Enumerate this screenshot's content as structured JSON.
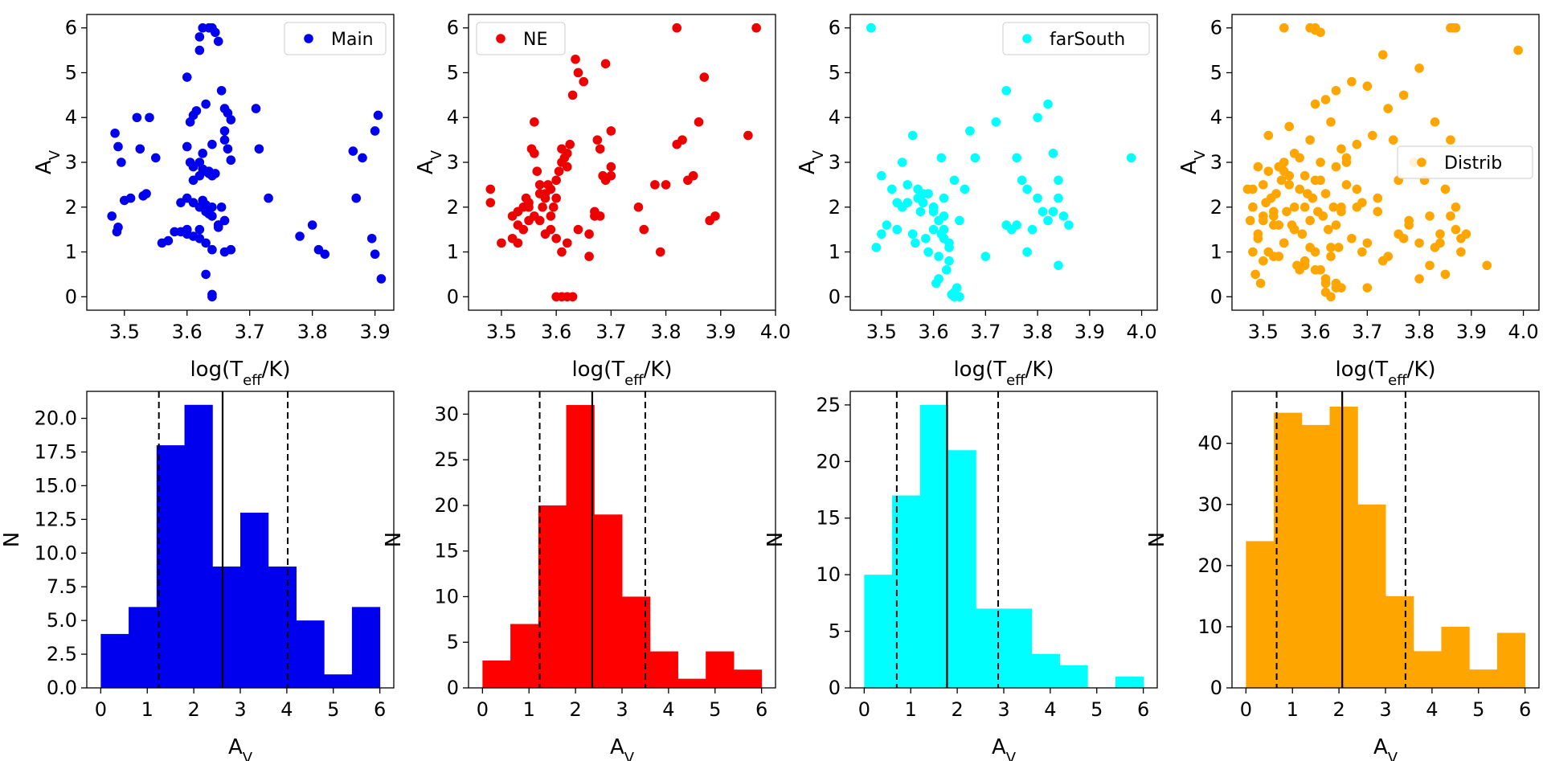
{
  "figure": {
    "scatter_xlabel_main": "log(T",
    "scatter_xlabel_sub": "eff",
    "scatter_xlabel_tail": "/K)",
    "scatter_ylabel_main": "A",
    "scatter_ylabel_sub": "V",
    "hist_xlabel_main": "A",
    "hist_xlabel_sub": "V",
    "hist_ylabel": "N"
  },
  "chart_data": [
    {
      "type": "scatter",
      "panel": "scatter-main",
      "color": "#0000ee",
      "legend": "Main",
      "legend_loc": "upper right",
      "xlim": [
        3.44,
        3.93
      ],
      "ylim": [
        -0.3,
        6.3
      ],
      "xticks": [
        "3.5",
        "3.6",
        "3.7",
        "3.8",
        "3.9"
      ],
      "xtick_values": [
        3.5,
        3.6,
        3.7,
        3.8,
        3.9
      ],
      "yticks": [
        "0",
        "1",
        "2",
        "3",
        "4",
        "5",
        "6"
      ],
      "ytick_values": [
        0,
        1,
        2,
        3,
        4,
        5,
        6
      ],
      "x": [
        3.485,
        3.49,
        3.495,
        3.49,
        3.488,
        3.48,
        3.5,
        3.51,
        3.52,
        3.525,
        3.53,
        3.535,
        3.54,
        3.55,
        3.56,
        3.57,
        3.58,
        3.59,
        3.6,
        3.605,
        3.61,
        3.615,
        3.62,
        3.62,
        3.625,
        3.63,
        3.635,
        3.64,
        3.645,
        3.65,
        3.655,
        3.66,
        3.665,
        3.67,
        3.6,
        3.605,
        3.61,
        3.62,
        3.625,
        3.63,
        3.635,
        3.64,
        3.645,
        3.6,
        3.62,
        3.63,
        3.64,
        3.65,
        3.66,
        3.66,
        3.67,
        3.59,
        3.6,
        3.61,
        3.62,
        3.625,
        3.63,
        3.635,
        3.64,
        3.65,
        3.6,
        3.61,
        3.62,
        3.63,
        3.64,
        3.65,
        3.655,
        3.66,
        3.665,
        3.67,
        3.63,
        3.64,
        3.64,
        3.635,
        3.6,
        3.61,
        3.62,
        3.625,
        3.64,
        3.66,
        3.71,
        3.715,
        3.73,
        3.78,
        3.8,
        3.81,
        3.82,
        3.865,
        3.87,
        3.88,
        3.895,
        3.9,
        3.905,
        3.91,
        3.9
      ],
      "y": [
        3.65,
        3.35,
        3.0,
        1.55,
        1.45,
        1.8,
        2.15,
        2.2,
        4.0,
        3.3,
        2.25,
        2.3,
        4.0,
        3.1,
        1.2,
        1.25,
        1.45,
        2.1,
        4.9,
        3.9,
        4.05,
        4.15,
        5.5,
        5.8,
        6.0,
        4.3,
        6.0,
        6.0,
        5.9,
        5.7,
        4.6,
        4.2,
        4.1,
        3.95,
        3.35,
        3.0,
        2.6,
        2.7,
        2.85,
        2.8,
        2.75,
        2.7,
        2.75,
        1.5,
        1.5,
        1.9,
        2.0,
        1.6,
        1.7,
        1.0,
        1.05,
        1.45,
        1.5,
        2.1,
        2.0,
        2.15,
        2.05,
        1.85,
        1.8,
        1.55,
        1.4,
        1.35,
        1.3,
        1.2,
        1.05,
        1.6,
        2.0,
        3.5,
        3.3,
        3.05,
        0.5,
        0.05,
        0.0,
        2.8,
        2.2,
        2.9,
        3.0,
        3.2,
        3.4,
        3.7,
        4.2,
        3.3,
        2.2,
        1.35,
        1.6,
        1.05,
        0.95,
        3.25,
        2.2,
        3.1,
        1.3,
        3.7,
        4.05,
        0.4,
        0.95
      ]
    },
    {
      "type": "scatter",
      "panel": "scatter-ne",
      "color": "#ee0000",
      "legend": "NE",
      "legend_loc": "upper left",
      "xlim": [
        3.44,
        4.0
      ],
      "ylim": [
        -0.3,
        6.3
      ],
      "xticks": [
        "3.5",
        "3.6",
        "3.7",
        "3.8",
        "3.9",
        "4.0"
      ],
      "xtick_values": [
        3.5,
        3.6,
        3.7,
        3.8,
        3.9,
        4.0
      ],
      "yticks": [
        "0",
        "1",
        "2",
        "3",
        "4",
        "5",
        "6"
      ],
      "ytick_values": [
        0,
        1,
        2,
        3,
        4,
        5,
        6
      ],
      "x": [
        3.48,
        3.48,
        3.5,
        3.52,
        3.53,
        3.53,
        3.54,
        3.545,
        3.55,
        3.55,
        3.555,
        3.56,
        3.56,
        3.565,
        3.57,
        3.57,
        3.575,
        3.58,
        3.58,
        3.585,
        3.59,
        3.59,
        3.595,
        3.6,
        3.6,
        3.605,
        3.61,
        3.61,
        3.615,
        3.62,
        3.62,
        3.625,
        3.63,
        3.635,
        3.64,
        3.65,
        3.66,
        3.67,
        3.675,
        3.68,
        3.685,
        3.69,
        3.7,
        3.7,
        3.7,
        3.69,
        3.68,
        3.67,
        3.66,
        3.64,
        3.62,
        3.61,
        3.6,
        3.59,
        3.58,
        3.57,
        3.56,
        3.55,
        3.54,
        3.53,
        3.52,
        3.75,
        3.76,
        3.78,
        3.79,
        3.8,
        3.82,
        3.83,
        3.84,
        3.85,
        3.86,
        3.87,
        3.88,
        3.89,
        3.95,
        3.965,
        3.82,
        3.6,
        3.61,
        3.62,
        3.63
      ],
      "y": [
        2.4,
        2.1,
        1.2,
        1.8,
        1.9,
        1.6,
        2.0,
        2.2,
        2.1,
        1.7,
        3.3,
        3.9,
        3.2,
        2.8,
        2.5,
        2.3,
        2.0,
        2.2,
        2.3,
        2.5,
        2.4,
        1.8,
        2.0,
        2.2,
        2.6,
        2.8,
        3.0,
        3.3,
        3.1,
        2.9,
        3.2,
        3.4,
        4.5,
        5.3,
        5.0,
        4.8,
        0.9,
        1.8,
        3.5,
        3.3,
        2.7,
        2.6,
        2.7,
        2.9,
        3.7,
        5.2,
        1.8,
        1.9,
        1.4,
        1.5,
        1.2,
        1.0,
        1.3,
        1.5,
        1.4,
        1.7,
        1.8,
        2.0,
        1.5,
        1.2,
        1.3,
        2.0,
        1.5,
        2.5,
        1.0,
        2.5,
        6.0,
        3.5,
        2.6,
        2.7,
        3.9,
        4.9,
        1.7,
        1.8,
        3.6,
        6.0,
        3.4,
        0.0,
        0.0,
        0.0,
        0.0
      ]
    },
    {
      "type": "scatter",
      "panel": "scatter-farsouth",
      "color": "#00ffff",
      "legend": "farSouth",
      "legend_loc": "upper right",
      "xlim": [
        3.44,
        4.03
      ],
      "ylim": [
        -0.3,
        6.3
      ],
      "xticks": [
        "3.5",
        "3.6",
        "3.7",
        "3.8",
        "3.9",
        "4.0"
      ],
      "xtick_values": [
        3.5,
        3.6,
        3.7,
        3.8,
        3.9,
        4.0
      ],
      "yticks": [
        "0",
        "1",
        "2",
        "3",
        "4",
        "5",
        "6"
      ],
      "ytick_values": [
        0,
        1,
        2,
        3,
        4,
        5,
        6
      ],
      "x": [
        3.48,
        3.49,
        3.5,
        3.5,
        3.51,
        3.52,
        3.53,
        3.53,
        3.54,
        3.55,
        3.56,
        3.565,
        3.57,
        3.575,
        3.58,
        3.585,
        3.59,
        3.59,
        3.6,
        3.6,
        3.605,
        3.61,
        3.61,
        3.615,
        3.62,
        3.62,
        3.625,
        3.63,
        3.63,
        3.635,
        3.64,
        3.64,
        3.645,
        3.65,
        3.62,
        3.6,
        3.61,
        3.62,
        3.63,
        3.615,
        3.64,
        3.66,
        3.67,
        3.68,
        3.7,
        3.72,
        3.74,
        3.76,
        3.78,
        3.8,
        3.82,
        3.83,
        3.84,
        3.85,
        3.76,
        3.77,
        3.79,
        3.8,
        3.81,
        3.82,
        3.83,
        3.84,
        3.86,
        3.74,
        3.75,
        3.78,
        3.84,
        3.98,
        3.48,
        3.56,
        3.54,
        3.58,
        3.6,
        3.65,
        3.55,
        3.57
      ],
      "y": [
        6.0,
        1.1,
        2.7,
        1.4,
        1.6,
        2.4,
        2.1,
        1.5,
        3.0,
        2.5,
        1.4,
        1.2,
        2.4,
        1.9,
        2.1,
        1.3,
        1.0,
        2.3,
        1.9,
        1.5,
        0.3,
        0.4,
        0.9,
        3.1,
        1.5,
        1.3,
        0.6,
        0.8,
        1.1,
        0.05,
        0.1,
        0.0,
        0.2,
        0.0,
        2.2,
        2.0,
        1.7,
        1.8,
        1.2,
        1.4,
        2.6,
        2.4,
        3.7,
        3.1,
        0.9,
        3.9,
        4.6,
        3.1,
        1.0,
        4.0,
        4.3,
        3.2,
        2.6,
        1.8,
        1.6,
        2.6,
        1.5,
        2.2,
        1.9,
        1.7,
        1.9,
        2.2,
        1.6,
        1.6,
        1.5,
        2.4,
        0.7,
        3.1,
        6.0,
        3.6,
        2.0,
        2.3,
        2.0,
        1.7,
        2.1,
        2.2
      ]
    },
    {
      "type": "scatter",
      "panel": "scatter-distrib",
      "color": "#ffa500",
      "legend": "Distrib",
      "legend_loc": "center right",
      "xlim": [
        3.44,
        4.03
      ],
      "ylim": [
        -0.3,
        6.3
      ],
      "xticks": [
        "3.5",
        "3.6",
        "3.7",
        "3.8",
        "3.9",
        "4.0"
      ],
      "xtick_values": [
        3.5,
        3.6,
        3.7,
        3.8,
        3.9,
        4.0
      ],
      "yticks": [
        "0",
        "1",
        "2",
        "3",
        "4",
        "5",
        "6"
      ],
      "ytick_values": [
        0,
        1,
        2,
        3,
        4,
        5,
        6
      ],
      "x": [
        3.47,
        3.475,
        3.48,
        3.48,
        3.485,
        3.49,
        3.49,
        3.495,
        3.5,
        3.5,
        3.505,
        3.51,
        3.51,
        3.515,
        3.52,
        3.52,
        3.525,
        3.53,
        3.53,
        3.535,
        3.54,
        3.54,
        3.545,
        3.55,
        3.55,
        3.555,
        3.56,
        3.56,
        3.565,
        3.57,
        3.57,
        3.575,
        3.58,
        3.58,
        3.585,
        3.59,
        3.59,
        3.595,
        3.6,
        3.6,
        3.605,
        3.61,
        3.61,
        3.615,
        3.62,
        3.62,
        3.625,
        3.63,
        3.63,
        3.635,
        3.64,
        3.64,
        3.645,
        3.65,
        3.65,
        3.66,
        3.67,
        3.68,
        3.69,
        3.7,
        3.71,
        3.72,
        3.73,
        3.74,
        3.75,
        3.76,
        3.77,
        3.78,
        3.79,
        3.8,
        3.81,
        3.82,
        3.83,
        3.84,
        3.85,
        3.86,
        3.87,
        3.88,
        3.89,
        3.93,
        3.99,
        3.54,
        3.59,
        3.6,
        3.6,
        3.61,
        3.86,
        3.865,
        3.87,
        3.48,
        3.49,
        3.5,
        3.51,
        3.52,
        3.53,
        3.54,
        3.55,
        3.56,
        3.57,
        3.58,
        3.59,
        3.6,
        3.61,
        3.62,
        3.63,
        3.64,
        3.65,
        3.66,
        3.67,
        3.68,
        3.69,
        3.7,
        3.72,
        3.74,
        3.76,
        3.78,
        3.8,
        3.82,
        3.84,
        3.86,
        3.88,
        3.48,
        3.5,
        3.52,
        3.54,
        3.56,
        3.58,
        3.6,
        3.62,
        3.64,
        3.66,
        3.68,
        3.7,
        3.73,
        3.77,
        3.8,
        3.83,
        3.85,
        3.87,
        3.62,
        3.63,
        3.64,
        3.65
      ],
      "y": [
        2.4,
        1.7,
        2.0,
        1.0,
        0.5,
        2.9,
        1.4,
        0.3,
        2.5,
        1.7,
        2.1,
        3.6,
        1.0,
        2.2,
        1.8,
        0.9,
        2.3,
        2.9,
        1.6,
        2.6,
        1.2,
        3.0,
        1.9,
        3.8,
        2.5,
        1.6,
        3.2,
        2.0,
        0.7,
        3.1,
        2.4,
        1.4,
        2.7,
        0.8,
        2.3,
        3.5,
        1.7,
        2.2,
        4.3,
        2.6,
        1.9,
        3.0,
        0.6,
        1.8,
        4.4,
        2.3,
        1.5,
        3.9,
        0.9,
        2.0,
        4.6,
        2.9,
        1.1,
        3.3,
        2.0,
        3.0,
        4.8,
        3.4,
        2.1,
        4.7,
        3.6,
        1.9,
        5.4,
        4.2,
        3.5,
        2.6,
        4.5,
        1.6,
        3.0,
        5.1,
        2.6,
        1.8,
        3.9,
        1.2,
        2.4,
        3.5,
        1.5,
        1.3,
        1.4,
        0.7,
        5.5,
        6.0,
        6.0,
        5.95,
        6.0,
        5.9,
        6.0,
        6.0,
        6.0,
        2.0,
        1.3,
        1.8,
        2.8,
        1.9,
        0.9,
        1.2,
        2.7,
        1.5,
        0.6,
        2.0,
        1.1,
        0.6,
        2.6,
        0.4,
        1.1,
        0.2,
        1.9,
        3.1,
        1.3,
        2.4,
        1.0,
        0.2,
        2.2,
        0.9,
        1.4,
        1.7,
        1.2,
        0.7,
        1.4,
        1.8,
        1.0,
        2.4,
        0.8,
        1.6,
        2.8,
        1.5,
        0.7,
        1.0,
        0.3,
        1.6,
        2.5,
        2.0,
        1.2,
        0.8,
        1.3,
        0.4,
        1.1,
        0.5,
        2.0,
        0.1,
        0.0,
        0.3,
        0.2
      ]
    },
    {
      "type": "bar",
      "panel": "hist-main",
      "color": "#0000ee",
      "bin_edges": [
        0,
        0.6,
        1.2,
        1.8,
        2.4,
        3.0,
        3.6,
        4.2,
        4.8,
        5.4,
        6.0
      ],
      "values": [
        4,
        6,
        18,
        21,
        9,
        13,
        9,
        5,
        1,
        6
      ],
      "ylim": [
        0,
        22.0
      ],
      "yticks": [
        "0.0",
        "2.5",
        "5.0",
        "7.5",
        "10.0",
        "12.5",
        "15.0",
        "17.5",
        "20.0"
      ],
      "ytick_values": [
        0,
        2.5,
        5,
        7.5,
        10,
        12.5,
        15,
        17.5,
        20
      ],
      "xticks": [
        "0",
        "1",
        "2",
        "3",
        "4",
        "5",
        "6"
      ],
      "xtick_values": [
        0,
        1,
        2,
        3,
        4,
        5,
        6
      ],
      "median": 2.62,
      "lower": 1.25,
      "upper": 4.02
    },
    {
      "type": "bar",
      "panel": "hist-ne",
      "color": "#ff0000",
      "bin_edges": [
        0,
        0.6,
        1.2,
        1.8,
        2.4,
        3.0,
        3.6,
        4.2,
        4.8,
        5.4,
        6.0
      ],
      "values": [
        3,
        7,
        20,
        31,
        19,
        10,
        4,
        1,
        4,
        2
      ],
      "ylim": [
        0,
        32.5
      ],
      "yticks": [
        "0",
        "5",
        "10",
        "15",
        "20",
        "25",
        "30"
      ],
      "ytick_values": [
        0,
        5,
        10,
        15,
        20,
        25,
        30
      ],
      "xticks": [
        "0",
        "1",
        "2",
        "3",
        "4",
        "5",
        "6"
      ],
      "xtick_values": [
        0,
        1,
        2,
        3,
        4,
        5,
        6
      ],
      "median": 2.36,
      "lower": 1.23,
      "upper": 3.5
    },
    {
      "type": "bar",
      "panel": "hist-farsouth",
      "color": "#00ffff",
      "bin_edges": [
        0,
        0.6,
        1.2,
        1.8,
        2.4,
        3.0,
        3.6,
        4.2,
        4.8,
        5.4,
        6.0
      ],
      "values": [
        10,
        17,
        25,
        21,
        7,
        7,
        3,
        2,
        0,
        1
      ],
      "ylim": [
        0,
        26.2
      ],
      "yticks": [
        "0",
        "5",
        "10",
        "15",
        "20",
        "25"
      ],
      "ytick_values": [
        0,
        5,
        10,
        15,
        20,
        25
      ],
      "xticks": [
        "0",
        "1",
        "2",
        "3",
        "4",
        "5",
        "6"
      ],
      "xtick_values": [
        0,
        1,
        2,
        3,
        4,
        5,
        6
      ],
      "median": 1.78,
      "lower": 0.7,
      "upper": 2.88
    },
    {
      "type": "bar",
      "panel": "hist-distrib",
      "color": "#ffa500",
      "bin_edges": [
        0,
        0.6,
        1.2,
        1.8,
        2.4,
        3.0,
        3.6,
        4.2,
        4.8,
        5.4,
        6.0
      ],
      "values": [
        24,
        45,
        43,
        46,
        30,
        15,
        6,
        10,
        3,
        9
      ],
      "ylim": [
        0,
        48.5
      ],
      "yticks": [
        "0",
        "10",
        "20",
        "30",
        "40"
      ],
      "ytick_values": [
        0,
        10,
        20,
        30,
        40
      ],
      "xticks": [
        "0",
        "1",
        "2",
        "3",
        "4",
        "5",
        "6"
      ],
      "xtick_values": [
        0,
        1,
        2,
        3,
        4,
        5,
        6
      ],
      "median": 2.07,
      "lower": 0.66,
      "upper": 3.43
    }
  ]
}
